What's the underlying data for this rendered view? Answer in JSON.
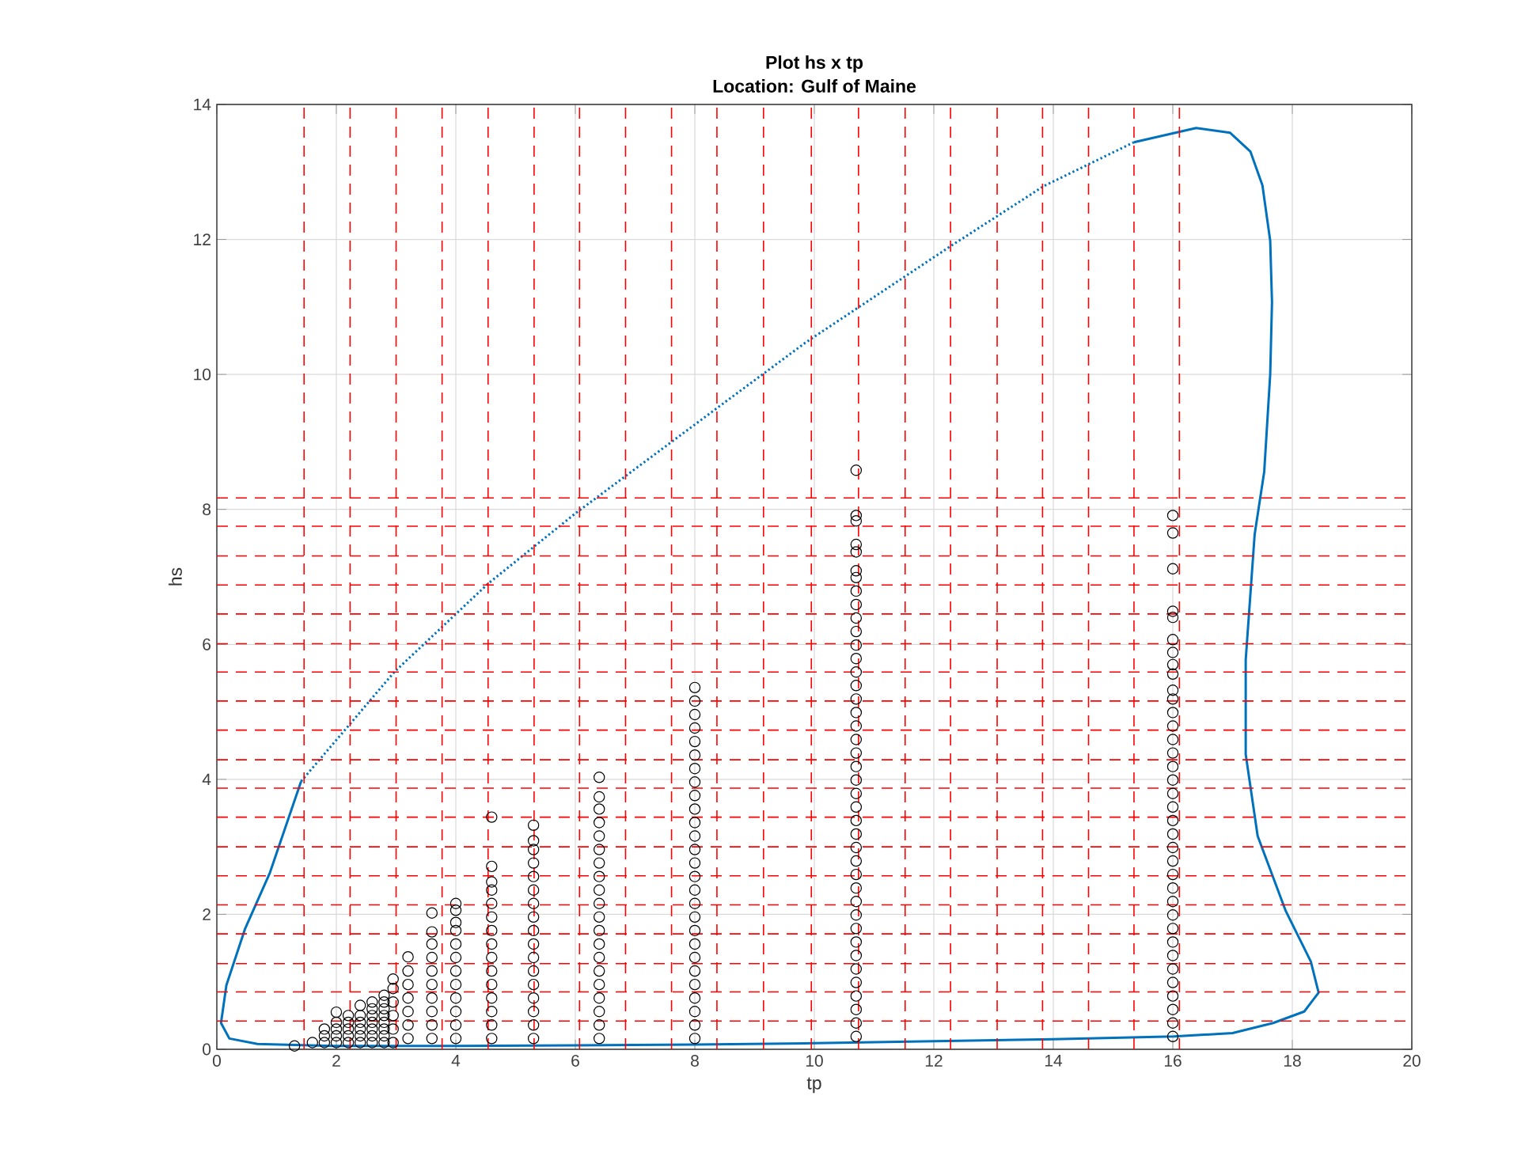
{
  "chart_data": {
    "type": "scatter",
    "title": "Plot hs x tp",
    "subtitle": "Location: Gulf of Maine",
    "xlabel": "tp",
    "ylabel": "hs",
    "xlim": [
      0,
      20
    ],
    "ylim": [
      0,
      14
    ],
    "xticks": [
      0,
      2,
      4,
      6,
      8,
      10,
      12,
      14,
      16,
      18,
      20
    ],
    "yticks": [
      0,
      2,
      4,
      6,
      8,
      10,
      12,
      14
    ],
    "grid": true,
    "series": [
      {
        "type": "scatter",
        "color": "#000000",
        "marker": "circle",
        "x": [
          1.3
        ],
        "values": [
          0.05
        ]
      },
      {
        "type": "scatter",
        "color": "#000000",
        "marker": "circle",
        "x": [
          1.6
        ],
        "values": [
          0.1
        ]
      },
      {
        "type": "scatter",
        "color": "#000000",
        "marker": "circle",
        "x": [
          1.8,
          1.8,
          1.8
        ],
        "values": [
          0.1,
          0.2,
          0.3
        ]
      },
      {
        "type": "scatter",
        "color": "#000000",
        "marker": "circle",
        "x": [
          2.0,
          2.0,
          2.0,
          2.0,
          2.0
        ],
        "values": [
          0.1,
          0.2,
          0.3,
          0.4,
          0.55
        ]
      },
      {
        "type": "scatter",
        "color": "#000000",
        "marker": "circle",
        "x": [
          2.2,
          2.2,
          2.2,
          2.2,
          2.2
        ],
        "values": [
          0.1,
          0.2,
          0.3,
          0.4,
          0.5
        ]
      },
      {
        "type": "scatter",
        "color": "#000000",
        "marker": "circle",
        "x": [
          2.4,
          2.4,
          2.4,
          2.4,
          2.4,
          2.4
        ],
        "values": [
          0.1,
          0.2,
          0.3,
          0.4,
          0.5,
          0.65
        ]
      },
      {
        "type": "scatter",
        "color": "#000000",
        "marker": "circle",
        "x": [
          2.6,
          2.6,
          2.6,
          2.6,
          2.6,
          2.6,
          2.6
        ],
        "values": [
          0.1,
          0.2,
          0.3,
          0.4,
          0.5,
          0.6,
          0.7
        ]
      },
      {
        "type": "scatter",
        "color": "#000000",
        "marker": "circle",
        "x": [
          2.8,
          2.8,
          2.8,
          2.8,
          2.8,
          2.8,
          2.8,
          2.8
        ],
        "values": [
          0.1,
          0.2,
          0.3,
          0.4,
          0.5,
          0.6,
          0.7,
          0.8
        ]
      },
      {
        "type": "scatter",
        "color": "#000000",
        "marker": "circle",
        "x": [
          2.95,
          2.95,
          2.95,
          2.95,
          2.95,
          2.95
        ],
        "values": [
          0.1,
          0.3,
          0.5,
          0.7,
          0.9,
          1.04
        ]
      },
      {
        "type": "scatter",
        "color": "#000000",
        "marker": "circle",
        "x": [
          3.2,
          3.2,
          3.2,
          3.2,
          3.2,
          3.2,
          3.2
        ],
        "values": [
          0.16,
          0.36,
          0.56,
          0.76,
          0.96,
          1.16,
          1.37
        ]
      },
      {
        "type": "scatter",
        "color": "#000000",
        "marker": "circle",
        "x": [
          3.6,
          3.6,
          3.6,
          3.6,
          3.6,
          3.6,
          3.6,
          3.6,
          3.6,
          3.6
        ],
        "values": [
          0.16,
          0.36,
          0.56,
          0.76,
          0.96,
          1.16,
          1.36,
          1.56,
          1.74,
          2.02
        ]
      },
      {
        "type": "scatter",
        "color": "#000000",
        "marker": "circle",
        "x": [
          4.0,
          4.0,
          4.0,
          4.0,
          4.0,
          4.0,
          4.0,
          4.0,
          4.0,
          4.0,
          4.0,
          4.0
        ],
        "values": [
          0.16,
          0.36,
          0.56,
          0.76,
          0.96,
          1.16,
          1.36,
          1.56,
          1.76,
          1.88,
          2.06,
          2.16
        ]
      },
      {
        "type": "scatter",
        "color": "#000000",
        "marker": "circle",
        "x": [
          4.6,
          4.6,
          4.6,
          4.6,
          4.6,
          4.6,
          4.6,
          4.6,
          4.6,
          4.6,
          4.6,
          4.6,
          4.6,
          4.6,
          4.6
        ],
        "values": [
          0.16,
          0.36,
          0.56,
          0.76,
          0.96,
          1.16,
          1.36,
          1.56,
          1.76,
          1.96,
          2.16,
          2.36,
          2.48,
          2.71,
          3.44
        ]
      },
      {
        "type": "scatter",
        "color": "#000000",
        "marker": "circle",
        "x": [
          5.3,
          5.3,
          5.3,
          5.3,
          5.3,
          5.3,
          5.3,
          5.3,
          5.3,
          5.3,
          5.3,
          5.3,
          5.3,
          5.3,
          5.3,
          5.3,
          5.3
        ],
        "values": [
          0.16,
          0.36,
          0.56,
          0.76,
          0.96,
          1.16,
          1.36,
          1.56,
          1.76,
          1.96,
          2.16,
          2.36,
          2.56,
          2.76,
          2.96,
          3.09,
          3.32
        ]
      },
      {
        "type": "scatter",
        "color": "#000000",
        "marker": "circle",
        "x": [
          6.4,
          6.4,
          6.4,
          6.4,
          6.4,
          6.4,
          6.4,
          6.4,
          6.4,
          6.4,
          6.4,
          6.4,
          6.4,
          6.4,
          6.4,
          6.4,
          6.4,
          6.4,
          6.4,
          6.4
        ],
        "values": [
          0.16,
          0.36,
          0.56,
          0.76,
          0.96,
          1.16,
          1.36,
          1.56,
          1.76,
          1.96,
          2.16,
          2.36,
          2.56,
          2.76,
          2.96,
          3.16,
          3.36,
          3.56,
          3.74,
          4.03
        ]
      },
      {
        "type": "scatter",
        "color": "#000000",
        "marker": "circle",
        "x": [
          8.0,
          8.0,
          8.0,
          8.0,
          8.0,
          8.0,
          8.0,
          8.0,
          8.0,
          8.0,
          8.0,
          8.0,
          8.0,
          8.0,
          8.0,
          8.0,
          8.0,
          8.0,
          8.0,
          8.0,
          8.0,
          8.0,
          8.0,
          8.0,
          8.0,
          8.0,
          8.0
        ],
        "values": [
          0.16,
          0.36,
          0.56,
          0.76,
          0.96,
          1.16,
          1.36,
          1.56,
          1.76,
          1.96,
          2.16,
          2.36,
          2.56,
          2.76,
          2.96,
          3.16,
          3.36,
          3.56,
          3.76,
          3.96,
          4.16,
          4.36,
          4.56,
          4.76,
          4.96,
          5.16,
          5.36
        ]
      },
      {
        "type": "scatter",
        "color": "#000000",
        "marker": "circle",
        "x": [
          10.7,
          10.7,
          10.7,
          10.7,
          10.7,
          10.7,
          10.7,
          10.7,
          10.7,
          10.7,
          10.7,
          10.7,
          10.7,
          10.7,
          10.7,
          10.7,
          10.7,
          10.7,
          10.7,
          10.7,
          10.7,
          10.7,
          10.7,
          10.7,
          10.7,
          10.7,
          10.7,
          10.7,
          10.7,
          10.7,
          10.7,
          10.7,
          10.7,
          10.7,
          10.7,
          10.7,
          10.7,
          10.7,
          10.7,
          10.7,
          10.7
        ],
        "values": [
          0.19,
          0.39,
          0.59,
          0.79,
          0.99,
          1.19,
          1.39,
          1.59,
          1.79,
          1.99,
          2.19,
          2.39,
          2.59,
          2.79,
          2.99,
          3.19,
          3.39,
          3.59,
          3.79,
          3.99,
          4.19,
          4.39,
          4.59,
          4.79,
          4.99,
          5.19,
          5.39,
          5.59,
          5.79,
          5.99,
          6.19,
          6.39,
          6.59,
          6.79,
          6.99,
          7.09,
          7.37,
          7.48,
          7.83,
          7.91,
          8.58
        ]
      },
      {
        "type": "scatter",
        "color": "#000000",
        "marker": "circle",
        "x": [
          16.0,
          16.0,
          16.0,
          16.0,
          16.0,
          16.0,
          16.0,
          16.0,
          16.0,
          16.0,
          16.0,
          16.0,
          16.0,
          16.0,
          16.0,
          16.0,
          16.0,
          16.0,
          16.0,
          16.0,
          16.0,
          16.0,
          16.0,
          16.0,
          16.0,
          16.0,
          16.0,
          16.0,
          16.0,
          16.0,
          16.0,
          16.0,
          16.0,
          16.0,
          16.0,
          16.0
        ],
        "values": [
          0.19,
          0.39,
          0.59,
          0.79,
          0.99,
          1.19,
          1.39,
          1.59,
          1.79,
          1.99,
          2.19,
          2.39,
          2.59,
          2.79,
          2.99,
          3.19,
          3.39,
          3.59,
          3.79,
          3.99,
          4.19,
          4.39,
          4.59,
          4.79,
          4.99,
          5.19,
          5.32,
          5.56,
          5.7,
          5.88,
          6.07,
          6.4,
          6.49,
          7.12,
          7.65,
          7.91
        ]
      },
      {
        "type": "line",
        "color": "#0072bd",
        "marker": "none",
        "line_style": "solid",
        "x": [
          1.41,
          0.89,
          0.47,
          0.16,
          0.07,
          0.21,
          0.68,
          1.93,
          4,
          6,
          8,
          10,
          12,
          14,
          16.02,
          17.0,
          17.68,
          18.2,
          18.44,
          18.31,
          17.89,
          17.42,
          17.22,
          17.22,
          17.37,
          17.53,
          17.63,
          17.66,
          17.63,
          17.5,
          17.3,
          16.96,
          16.39,
          15.35
        ],
        "values": [
          3.97,
          2.62,
          1.78,
          0.95,
          0.39,
          0.16,
          0.08,
          0.05,
          0.05,
          0.06,
          0.07,
          0.09,
          0.12,
          0.15,
          0.19,
          0.24,
          0.39,
          0.56,
          0.84,
          1.3,
          2.05,
          3.16,
          4.37,
          5.77,
          7.63,
          8.56,
          10,
          11.07,
          11.98,
          12.8,
          13.3,
          13.58,
          13.65,
          13.44
        ]
      },
      {
        "type": "line",
        "color": "#0072bd",
        "marker": "none",
        "line_style": "dotted",
        "x": [
          1.41,
          2.97,
          4.54,
          6.0,
          8.37,
          9.85,
          12.28,
          13.84,
          15.35
        ],
        "values": [
          3.97,
          5.59,
          6.9,
          7.94,
          9.5,
          10.47,
          11.9,
          12.79,
          13.44
        ]
      }
    ],
    "ref_lines": [
      {
        "axis": "x",
        "value": 1.46,
        "color": "#ff0000",
        "line_style": "dashed"
      },
      {
        "axis": "x",
        "value": 2.23,
        "color": "#ff0000",
        "line_style": "dashed"
      },
      {
        "axis": "x",
        "value": 3.0,
        "color": "#ff0000",
        "line_style": "dashed"
      },
      {
        "axis": "x",
        "value": 3.77,
        "color": "#ff0000",
        "line_style": "dashed"
      },
      {
        "axis": "x",
        "value": 4.54,
        "color": "#ff0000",
        "line_style": "dashed"
      },
      {
        "axis": "x",
        "value": 5.31,
        "color": "#ff0000",
        "line_style": "dashed"
      },
      {
        "axis": "x",
        "value": 6.07,
        "color": "#ff0000",
        "line_style": "dashed"
      },
      {
        "axis": "x",
        "value": 6.84,
        "color": "#ff0000",
        "line_style": "dashed"
      },
      {
        "axis": "x",
        "value": 7.61,
        "color": "#ff0000",
        "line_style": "dashed"
      },
      {
        "axis": "x",
        "value": 8.37,
        "color": "#ff0000",
        "line_style": "dashed"
      },
      {
        "axis": "x",
        "value": 9.15,
        "color": "#ff0000",
        "line_style": "dashed"
      },
      {
        "axis": "x",
        "value": 9.95,
        "color": "#ff0000",
        "line_style": "dashed"
      },
      {
        "axis": "x",
        "value": 10.74,
        "color": "#ff0000",
        "line_style": "dashed"
      },
      {
        "axis": "x",
        "value": 11.52,
        "color": "#ff0000",
        "line_style": "dashed"
      },
      {
        "axis": "x",
        "value": 12.28,
        "color": "#ff0000",
        "line_style": "dashed"
      },
      {
        "axis": "x",
        "value": 13.06,
        "color": "#ff0000",
        "line_style": "dashed"
      },
      {
        "axis": "x",
        "value": 13.82,
        "color": "#ff0000",
        "line_style": "dashed"
      },
      {
        "axis": "x",
        "value": 14.59,
        "color": "#ff0000",
        "line_style": "dashed"
      },
      {
        "axis": "x",
        "value": 15.35,
        "color": "#ff0000",
        "line_style": "dashed"
      },
      {
        "axis": "x",
        "value": 16.11,
        "color": "#ff0000",
        "line_style": "dashed"
      },
      {
        "axis": "y",
        "value": 0.42,
        "color": "#ff0000",
        "line_style": "dashed"
      },
      {
        "axis": "y",
        "value": 0.85,
        "color": "#ff0000",
        "line_style": "dashed"
      },
      {
        "axis": "y",
        "value": 1.27,
        "color": "#ff0000",
        "line_style": "dashed"
      },
      {
        "axis": "y",
        "value": 1.71,
        "color": "#ff0000",
        "line_style": "dashed"
      },
      {
        "axis": "y",
        "value": 2.14,
        "color": "#ff0000",
        "line_style": "dashed"
      },
      {
        "axis": "y",
        "value": 2.57,
        "color": "#ff0000",
        "line_style": "dashed"
      },
      {
        "axis": "y",
        "value": 3.0,
        "color": "#ff0000",
        "line_style": "dashed"
      },
      {
        "axis": "y",
        "value": 3.44,
        "color": "#ff0000",
        "line_style": "dashed"
      },
      {
        "axis": "y",
        "value": 3.87,
        "color": "#ff0000",
        "line_style": "dashed"
      },
      {
        "axis": "y",
        "value": 4.29,
        "color": "#ff0000",
        "line_style": "dashed"
      },
      {
        "axis": "y",
        "value": 4.73,
        "color": "#ff0000",
        "line_style": "dashed"
      },
      {
        "axis": "y",
        "value": 5.16,
        "color": "#ff0000",
        "line_style": "dashed"
      },
      {
        "axis": "y",
        "value": 5.59,
        "color": "#ff0000",
        "line_style": "dashed"
      },
      {
        "axis": "y",
        "value": 6.01,
        "color": "#ff0000",
        "line_style": "dashed"
      },
      {
        "axis": "y",
        "value": 6.45,
        "color": "#ff0000",
        "line_style": "dashed"
      },
      {
        "axis": "y",
        "value": 6.88,
        "color": "#ff0000",
        "line_style": "dashed"
      },
      {
        "axis": "y",
        "value": 7.31,
        "color": "#ff0000",
        "line_style": "dashed"
      },
      {
        "axis": "y",
        "value": 7.75,
        "color": "#ff0000",
        "line_style": "dashed"
      },
      {
        "axis": "y",
        "value": 8.17,
        "color": "#ff0000",
        "line_style": "dashed"
      }
    ]
  }
}
